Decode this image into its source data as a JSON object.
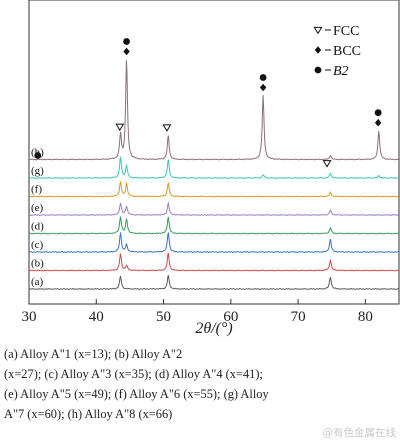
{
  "chart_data": {
    "type": "line",
    "x_axis": {
      "label_text": "2θ/(°)",
      "range": [
        30,
        85
      ],
      "ticks": [
        30,
        40,
        50,
        60,
        70,
        80
      ],
      "tick_labels": [
        "30",
        "40",
        "50",
        "60",
        "70",
        "80"
      ]
    },
    "y_axis": {
      "visible": false
    },
    "grid": false,
    "legend": {
      "placement": "top-right",
      "entries": [
        {
          "marker": "triangle-down",
          "label": "FCC"
        },
        {
          "marker": "diamond",
          "label": "BCC"
        },
        {
          "marker": "circle",
          "label": "B2"
        }
      ]
    },
    "series": [
      {
        "label": "(a)",
        "color": "#5a5a5a",
        "peaks": [
          [
            43.6,
            0.32
          ],
          [
            50.7,
            0.34
          ],
          [
            74.8,
            0.3
          ]
        ]
      },
      {
        "label": "(b)",
        "color": "#cf4b4b",
        "peaks": [
          [
            43.6,
            0.42
          ],
          [
            44.5,
            0.12
          ],
          [
            50.7,
            0.44
          ],
          [
            74.8,
            0.26
          ]
        ]
      },
      {
        "label": "(c)",
        "color": "#3d72c4",
        "peaks": [
          [
            43.6,
            0.48
          ],
          [
            44.5,
            0.18
          ],
          [
            50.7,
            0.5
          ],
          [
            74.8,
            0.32
          ]
        ]
      },
      {
        "label": "(d)",
        "color": "#3d9a5c",
        "peaks": [
          [
            43.6,
            0.42
          ],
          [
            44.5,
            0.36
          ],
          [
            50.7,
            0.42
          ],
          [
            74.8,
            0.14
          ]
        ]
      },
      {
        "label": "(e)",
        "color": "#9b7fc4",
        "peaks": [
          [
            43.6,
            0.3
          ],
          [
            44.5,
            0.22
          ],
          [
            50.7,
            0.3
          ],
          [
            74.8,
            0.12
          ]
        ]
      },
      {
        "label": "(f)",
        "color": "#d39b1f",
        "peaks": [
          [
            43.6,
            0.36
          ],
          [
            44.5,
            0.32
          ],
          [
            50.7,
            0.34
          ],
          [
            74.8,
            0.1
          ]
        ]
      },
      {
        "label": "(g)",
        "color": "#3fc3b6",
        "peaks": [
          [
            43.6,
            0.52
          ],
          [
            44.5,
            0.3
          ],
          [
            50.7,
            0.46
          ],
          [
            64.8,
            0.08
          ],
          [
            74.8,
            0.12
          ],
          [
            82.0,
            0.06
          ]
        ]
      },
      {
        "label": "(h)",
        "color": "#8b6e7c",
        "peaks": [
          [
            43.6,
            0.62
          ],
          [
            44.5,
            2.5
          ],
          [
            50.7,
            0.6
          ],
          [
            64.8,
            1.6
          ],
          [
            74.8,
            0.1
          ],
          [
            82.0,
            0.72
          ]
        ]
      }
    ],
    "phase_markers": [
      {
        "x": 44.5,
        "symbols": [
          "circle",
          "diamond"
        ]
      },
      {
        "x": 50.5,
        "symbols": [
          "triangle-down"
        ]
      },
      {
        "x": 43.5,
        "symbols": [
          "triangle-down"
        ]
      },
      {
        "x": 64.8,
        "symbols": [
          "circle",
          "diamond"
        ]
      },
      {
        "x": 81.9,
        "symbols": [
          "circle",
          "diamond"
        ]
      },
      {
        "x": 74.3,
        "symbols": [
          "triangle-down"
        ]
      },
      {
        "x": 31.3,
        "symbols": [
          "circle"
        ]
      }
    ]
  },
  "caption_lines": [
    "(a) Alloy A\"1 (x=13); (b) Alloy A\"2",
    "(x=27); (c) Alloy A\"3 (x=35); (d) Alloy A\"4 (x=41);",
    "(e) Alloy A\"5 (x=49); (f) Alloy A\"6 (x=55); (g) Alloy",
    "A\"7 (x=60); (h) Alloy A\"8 (x=66)"
  ],
  "watermark": "@有色金属在线"
}
